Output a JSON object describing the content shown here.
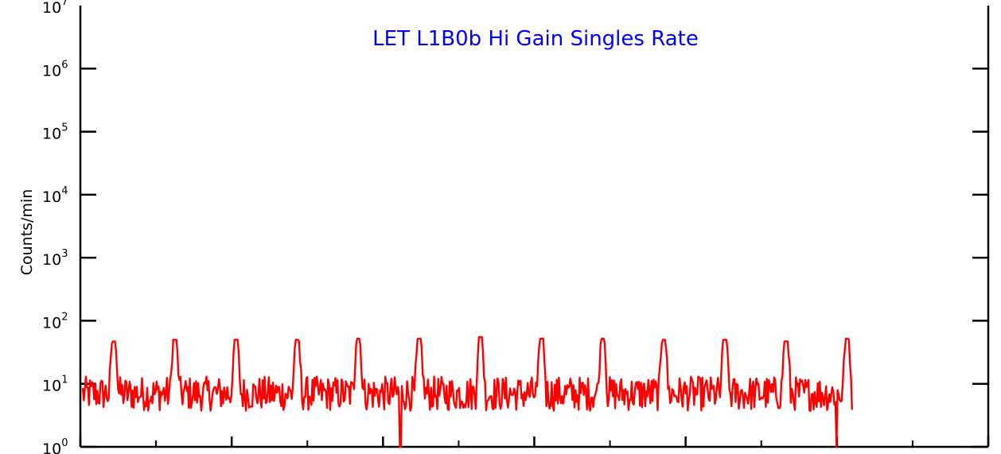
{
  "chart_data": {
    "type": "line",
    "title": "LET L1B0b Hi Gain Singles Rate",
    "xlabel": "",
    "ylabel": "Counts/min",
    "yscale": "log",
    "ylim": [
      1,
      10000000
    ],
    "y_tick_labels": [
      {
        "base": "10",
        "exp": "0"
      },
      {
        "base": "10",
        "exp": "1"
      },
      {
        "base": "10",
        "exp": "2"
      },
      {
        "base": "10",
        "exp": "3"
      },
      {
        "base": "10",
        "exp": "4"
      },
      {
        "base": "10",
        "exp": "5"
      },
      {
        "base": "10",
        "exp": "6"
      },
      {
        "base": "10",
        "exp": "7"
      }
    ],
    "grid": false,
    "colors": {
      "series": "#ff0000",
      "title": "#0000ff",
      "axes": "#000000"
    },
    "series": [
      {
        "description_note": "",
        "baseline_counts_per_min": 7,
        "noise_range": [
          2,
          13
        ],
        "spike_peak_values": [
          47,
          50,
          50,
          50,
          52,
          52,
          55,
          52,
          52,
          50,
          50,
          47,
          52
        ],
        "dips": [
          1,
          1
        ],
        "extent_fraction_of_axis": 0.85
      }
    ]
  }
}
